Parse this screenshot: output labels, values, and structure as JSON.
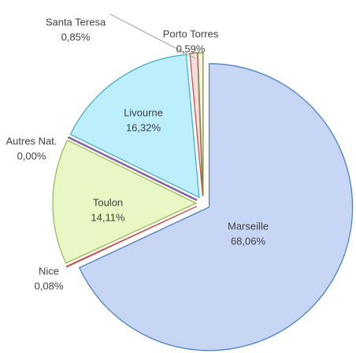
{
  "chart_data": {
    "type": "pie",
    "categories": [
      "Marseille",
      "Nice",
      "Toulon",
      "Autres Nat.",
      "Livourne",
      "Santa Teresa",
      "Porto Torres"
    ],
    "values": [
      68.06,
      0.08,
      14.11,
      0.0,
      16.32,
      0.85,
      0.59
    ],
    "value_labels": [
      "68,06%",
      "0,08%",
      "14,11%",
      "0,00%",
      "16,32%",
      "0,85%",
      "0,59%"
    ],
    "colors": [
      "#c6d6f4",
      "#f2c8c8",
      "#e9f7c4",
      "#d9cde8",
      "#bdeefc",
      "#f6dede",
      "#f6f2de"
    ],
    "stroke_colors": [
      "#4f81bd",
      "#c0504d",
      "#9bbb59",
      "#8064a2",
      "#4bacc6",
      "#c0504d",
      "#77933c"
    ]
  }
}
